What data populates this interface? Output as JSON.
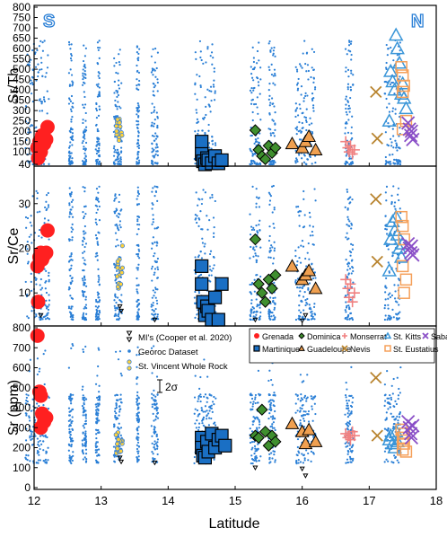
{
  "figure": {
    "x_axis_label": "Latitude",
    "x_ticks": [
      "12",
      "13",
      "14",
      "15",
      "16",
      "17",
      "18"
    ],
    "corner_labels": {
      "south": "S",
      "north": "N"
    },
    "error_bar_label": "2σ"
  },
  "colors": {
    "grenada": "#ff2020",
    "dominica": "#3f8f2f",
    "monserrat": "#f08080",
    "st_kitts": "#3a96d8",
    "saba": "#8a4fc7",
    "martinique": "#1a6fc4",
    "guadeloupe": "#f0a050",
    "nevis": "#b8842f",
    "st_eustatius": "#f5a05a",
    "georoc": "#2a7fd6",
    "svwr_fill": "#ffd23a",
    "svwr_edge": "#3a7fd6",
    "mi": "#000000",
    "corner_label": "#2a7fd6"
  },
  "legend_left": [
    {
      "key": "mi",
      "label": "MI's (Cooper et al. 2020)"
    },
    {
      "key": "georoc",
      "label": "Georoc Dataset"
    },
    {
      "key": "svwr",
      "label": "St. Vincent Whole Rock"
    }
  ],
  "legend_right": [
    [
      {
        "key": "grenada",
        "label": "Grenada",
        "marker": "circle"
      },
      {
        "key": "dominica",
        "label": "Dominica",
        "marker": "diamond"
      },
      {
        "key": "monserrat",
        "label": "Monserrat",
        "marker": "plus"
      },
      {
        "key": "st_kitts",
        "label": "St. Kitts",
        "marker": "triangle-open"
      },
      {
        "key": "saba",
        "label": "Saba",
        "marker": "x"
      }
    ],
    [
      {
        "key": "martinique",
        "label": "Martinique",
        "marker": "square"
      },
      {
        "key": "guadeloupe",
        "label": "Guadeloupe",
        "marker": "triangle"
      },
      {
        "key": "nevis",
        "label": "Nevis",
        "marker": "x"
      },
      {
        "key": "st_eustatius",
        "label": "St. Eustatius",
        "marker": "square-open"
      }
    ]
  ],
  "chart_data": [
    {
      "type": "scatter",
      "ylabel": "Sr/Th",
      "xlim": [
        12,
        18
      ],
      "ylim": [
        40,
        800
      ],
      "yticks": [
        40,
        100,
        150,
        200,
        250,
        300,
        350,
        400,
        450,
        500,
        550,
        600,
        650,
        700,
        750,
        800
      ],
      "series": [
        {
          "name": "Grenada",
          "points": [
            [
              12.05,
              120
            ],
            [
              12.08,
              150
            ],
            [
              12.1,
              130
            ],
            [
              12.12,
              180
            ],
            [
              12.06,
              70
            ],
            [
              12.15,
              140
            ],
            [
              12.2,
              220
            ],
            [
              12.18,
              160
            ],
            [
              12.1,
              100
            ]
          ]
        },
        {
          "name": "Martinique",
          "points": [
            [
              14.5,
              150
            ],
            [
              14.5,
              90
            ],
            [
              14.52,
              55
            ],
            [
              14.55,
              40
            ],
            [
              14.58,
              70
            ],
            [
              14.6,
              60
            ],
            [
              14.65,
              45
            ],
            [
              14.7,
              80
            ],
            [
              14.75,
              45
            ],
            [
              14.8,
              60
            ]
          ]
        },
        {
          "name": "Dominica",
          "points": [
            [
              15.3,
              205
            ],
            [
              15.35,
              110
            ],
            [
              15.4,
              80
            ],
            [
              15.45,
              65
            ],
            [
              15.5,
              130
            ],
            [
              15.55,
              95
            ],
            [
              15.6,
              120
            ]
          ]
        },
        {
          "name": "Guadeloupe",
          "points": [
            [
              15.85,
              140
            ],
            [
              16.0,
              120
            ],
            [
              16.05,
              150
            ],
            [
              16.1,
              175
            ],
            [
              16.2,
              110
            ]
          ]
        },
        {
          "name": "Monserrat",
          "points": [
            [
              16.65,
              150
            ],
            [
              16.68,
              120
            ],
            [
              16.7,
              100
            ],
            [
              16.72,
              130
            ],
            [
              16.75,
              90
            ],
            [
              16.78,
              110
            ]
          ]
        },
        {
          "name": "Nevis",
          "points": [
            [
              17.1,
              390
            ],
            [
              17.12,
              165
            ]
          ]
        },
        {
          "name": "St. Kitts",
          "points": [
            [
              17.3,
              250
            ],
            [
              17.32,
              490
            ],
            [
              17.35,
              440
            ],
            [
              17.38,
              400
            ],
            [
              17.4,
              665
            ],
            [
              17.42,
              600
            ],
            [
              17.45,
              530
            ],
            [
              17.48,
              380
            ],
            [
              17.5,
              430
            ],
            [
              17.52,
              360
            ],
            [
              17.55,
              310
            ]
          ]
        },
        {
          "name": "St. Eustatius",
          "points": [
            [
              17.48,
              510
            ],
            [
              17.5,
              470
            ],
            [
              17.52,
              420
            ],
            [
              17.5,
              390
            ],
            [
              17.55,
              250
            ],
            [
              17.5,
              210
            ]
          ]
        },
        {
          "name": "Saba",
          "points": [
            [
              17.58,
              240
            ],
            [
              17.6,
              210
            ],
            [
              17.62,
              180
            ],
            [
              17.65,
              160
            ],
            [
              17.63,
              200
            ]
          ]
        }
      ]
    },
    {
      "type": "scatter",
      "ylabel": "Sr/Ce",
      "xlim": [
        12,
        18
      ],
      "ylim": [
        3,
        38
      ],
      "yticks": [
        10,
        20,
        30
      ],
      "series": [
        {
          "name": "Grenada",
          "points": [
            [
              12.05,
              16
            ],
            [
              12.08,
              18
            ],
            [
              12.1,
              19
            ],
            [
              12.12,
              17.5
            ],
            [
              12.06,
              8
            ],
            [
              12.15,
              18.5
            ],
            [
              12.2,
              24
            ],
            [
              12.18,
              19
            ]
          ]
        },
        {
          "name": "Martinique",
          "points": [
            [
              14.5,
              16
            ],
            [
              14.5,
              12
            ],
            [
              14.52,
              8
            ],
            [
              14.55,
              5
            ],
            [
              14.58,
              7
            ],
            [
              14.6,
              6
            ],
            [
              14.65,
              4
            ],
            [
              14.7,
              9
            ],
            [
              14.75,
              4
            ],
            [
              14.8,
              12
            ]
          ]
        },
        {
          "name": "Dominica",
          "points": [
            [
              15.3,
              22
            ],
            [
              15.35,
              12
            ],
            [
              15.4,
              10
            ],
            [
              15.45,
              8
            ],
            [
              15.5,
              13
            ],
            [
              15.55,
              11
            ],
            [
              15.6,
              14
            ]
          ]
        },
        {
          "name": "Guadeloupe",
          "points": [
            [
              15.85,
              16
            ],
            [
              16.0,
              13
            ],
            [
              16.05,
              14
            ],
            [
              16.1,
              15
            ],
            [
              16.2,
              11
            ]
          ]
        },
        {
          "name": "Monserrat",
          "points": [
            [
              16.65,
              13
            ],
            [
              16.68,
              11
            ],
            [
              16.7,
              9
            ],
            [
              16.72,
              12
            ],
            [
              16.75,
              8
            ],
            [
              16.78,
              10
            ]
          ]
        },
        {
          "name": "Nevis",
          "points": [
            [
              17.1,
              31
            ],
            [
              17.12,
              17
            ]
          ]
        },
        {
          "name": "St. Kitts",
          "points": [
            [
              17.3,
              15
            ],
            [
              17.32,
              22
            ],
            [
              17.35,
              26
            ],
            [
              17.38,
              24
            ],
            [
              17.4,
              27
            ],
            [
              17.42,
              23
            ],
            [
              17.45,
              20
            ],
            [
              17.48,
              18
            ],
            [
              17.5,
              21
            ]
          ]
        },
        {
          "name": "St. Eustatius",
          "points": [
            [
              17.48,
              27
            ],
            [
              17.5,
              25
            ],
            [
              17.52,
              22
            ],
            [
              17.5,
              16
            ],
            [
              17.55,
              13
            ],
            [
              17.52,
              10
            ]
          ]
        },
        {
          "name": "Saba",
          "points": [
            [
              17.58,
              21
            ],
            [
              17.6,
              20
            ],
            [
              17.62,
              19
            ],
            [
              17.65,
              18.5
            ],
            [
              17.63,
              20.5
            ]
          ]
        }
      ]
    },
    {
      "type": "scatter",
      "ylabel": "Sr (ppm)",
      "xlim": [
        12,
        18
      ],
      "ylim": [
        0,
        800
      ],
      "yticks": [
        0,
        100,
        200,
        300,
        400,
        500,
        600,
        700,
        800
      ],
      "series": [
        {
          "name": "Grenada",
          "points": [
            [
              12.05,
              760
            ],
            [
              12.08,
              480
            ],
            [
              12.1,
              460
            ],
            [
              12.12,
              370
            ],
            [
              12.15,
              330
            ],
            [
              12.18,
              350
            ],
            [
              12.1,
              300
            ]
          ]
        },
        {
          "name": "Martinique",
          "points": [
            [
              14.5,
              250
            ],
            [
              14.5,
              200
            ],
            [
              14.52,
              160
            ],
            [
              14.55,
              150
            ],
            [
              14.58,
              230
            ],
            [
              14.6,
              180
            ],
            [
              14.65,
              270
            ],
            [
              14.7,
              200
            ],
            [
              14.75,
              240
            ],
            [
              14.8,
              260
            ],
            [
              14.85,
              210
            ]
          ]
        },
        {
          "name": "Dominica",
          "points": [
            [
              15.3,
              260
            ],
            [
              15.35,
              250
            ],
            [
              15.4,
              390
            ],
            [
              15.45,
              280
            ],
            [
              15.5,
              210
            ],
            [
              15.55,
              260
            ],
            [
              15.6,
              230
            ]
          ]
        },
        {
          "name": "Guadeloupe",
          "points": [
            [
              15.85,
              320
            ],
            [
              16.0,
              280
            ],
            [
              16.05,
              220
            ],
            [
              16.1,
              290
            ],
            [
              16.2,
              230
            ]
          ]
        },
        {
          "name": "Monserrat",
          "points": [
            [
              16.65,
              270
            ],
            [
              16.68,
              250
            ],
            [
              16.7,
              260
            ],
            [
              16.72,
              240
            ],
            [
              16.75,
              280
            ],
            [
              16.78,
              260
            ]
          ]
        },
        {
          "name": "Nevis",
          "points": [
            [
              17.1,
              550
            ],
            [
              17.12,
              260
            ]
          ]
        },
        {
          "name": "St. Kitts",
          "points": [
            [
              17.3,
              240
            ],
            [
              17.32,
              260
            ],
            [
              17.35,
              220
            ],
            [
              17.38,
              200
            ],
            [
              17.4,
              280
            ],
            [
              17.42,
              230
            ]
          ]
        },
        {
          "name": "St. Eustatius",
          "points": [
            [
              17.48,
              290
            ],
            [
              17.5,
              250
            ],
            [
              17.52,
              220
            ],
            [
              17.5,
              190
            ],
            [
              17.55,
              180
            ],
            [
              17.52,
              270
            ]
          ]
        },
        {
          "name": "Saba",
          "points": [
            [
              17.58,
              330
            ],
            [
              17.6,
              300
            ],
            [
              17.62,
              270
            ],
            [
              17.65,
              310
            ],
            [
              17.63,
              250
            ]
          ]
        }
      ]
    }
  ]
}
